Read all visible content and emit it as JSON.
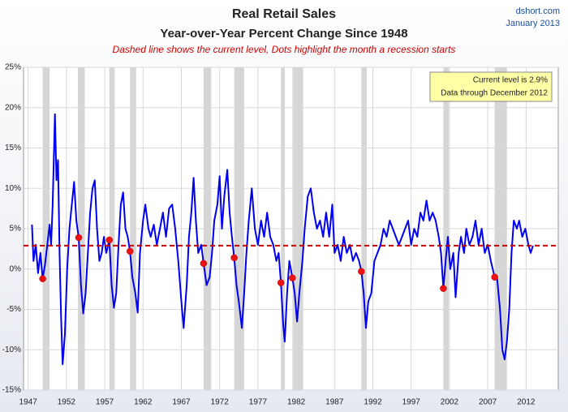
{
  "chart_data": {
    "type": "line",
    "title": "Real Retail Sales",
    "subtitle": "Year-over-Year Percent Change Since 1948",
    "note": "Dashed line shows the current level, Dots highlight the month a recession starts",
    "source": "dshort.com",
    "date": "January 2013",
    "annotation": [
      "Current level is 2.9%",
      "Data through December 2012"
    ],
    "current_level": 2.9,
    "reference_color": "#cc0000",
    "recessions": [
      [
        1948.9,
        1949.8
      ],
      [
        1953.5,
        1954.4
      ],
      [
        1957.6,
        1958.3
      ],
      [
        1960.3,
        1961.1
      ],
      [
        1969.9,
        1970.9
      ],
      [
        1973.9,
        1975.2
      ],
      [
        1980.0,
        1980.5
      ],
      [
        1981.5,
        1982.9
      ],
      [
        1990.5,
        1991.2
      ],
      [
        2001.2,
        2001.9
      ],
      [
        2007.9,
        2009.5
      ]
    ],
    "recession_color": "#d6d6d6",
    "series": [
      {
        "color": "#0000ee",
        "x": [
          1947.5,
          1947.7,
          1948.0,
          1948.3,
          1948.6,
          1948.9,
          1949.2,
          1949.5,
          1949.8,
          1950.0,
          1950.2,
          1950.5,
          1950.7,
          1950.9,
          1951.1,
          1951.3,
          1951.5,
          1951.8,
          1952.1,
          1952.4,
          1952.7,
          1953.0,
          1953.3,
          1953.6,
          1953.9,
          1954.2,
          1954.5,
          1954.8,
          1955.1,
          1955.4,
          1955.7,
          1956.0,
          1956.3,
          1956.6,
          1956.9,
          1957.2,
          1957.6,
          1957.9,
          1958.2,
          1958.5,
          1958.8,
          1959.1,
          1959.4,
          1959.7,
          1960.0,
          1960.3,
          1960.6,
          1961.0,
          1961.3,
          1961.6,
          1962.0,
          1962.3,
          1962.7,
          1963.0,
          1963.4,
          1963.8,
          1964.2,
          1964.6,
          1965.0,
          1965.4,
          1965.8,
          1966.2,
          1966.6,
          1967.0,
          1967.3,
          1967.7,
          1968.0,
          1968.3,
          1968.6,
          1968.9,
          1969.2,
          1969.6,
          1969.9,
          1970.3,
          1970.7,
          1971.0,
          1971.3,
          1971.7,
          1972.0,
          1972.3,
          1972.6,
          1973.0,
          1973.3,
          1973.6,
          1973.9,
          1974.2,
          1974.5,
          1974.9,
          1975.2,
          1975.5,
          1975.8,
          1976.2,
          1976.6,
          1977.0,
          1977.4,
          1977.8,
          1978.2,
          1978.6,
          1979.0,
          1979.4,
          1979.7,
          1980.0,
          1980.3,
          1980.5,
          1980.8,
          1981.1,
          1981.5,
          1981.8,
          1982.1,
          1982.4,
          1982.8,
          1983.1,
          1983.5,
          1983.9,
          1984.3,
          1984.7,
          1985.1,
          1985.5,
          1985.9,
          1986.3,
          1986.7,
          1987.0,
          1987.4,
          1987.8,
          1988.2,
          1988.6,
          1989.0,
          1989.4,
          1989.8,
          1990.2,
          1990.5,
          1990.8,
          1991.1,
          1991.4,
          1991.8,
          1992.2,
          1992.6,
          1993.0,
          1993.4,
          1993.8,
          1994.2,
          1994.6,
          1995.0,
          1995.4,
          1995.8,
          1996.2,
          1996.6,
          1997.0,
          1997.4,
          1997.8,
          1998.2,
          1998.6,
          1999.0,
          1999.4,
          1999.8,
          2000.2,
          2000.6,
          2000.9,
          2001.2,
          2001.5,
          2001.8,
          2002.1,
          2002.5,
          2002.8,
          2003.2,
          2003.5,
          2003.9,
          2004.2,
          2004.6,
          2005.0,
          2005.4,
          2005.8,
          2006.2,
          2006.6,
          2007.0,
          2007.4,
          2007.9,
          2008.2,
          2008.6,
          2008.9,
          2009.2,
          2009.5,
          2009.8,
          2010.1,
          2010.4,
          2010.8,
          2011.1,
          2011.5,
          2011.9,
          2012.3,
          2012.6,
          2012.9
        ],
        "values": [
          5.5,
          1,
          3,
          -0.5,
          2,
          -1.2,
          0.5,
          3,
          5.5,
          3,
          8,
          19.2,
          11,
          13.5,
          2,
          -6,
          -11.8,
          -8,
          0,
          5,
          8,
          10.8,
          6,
          3.9,
          -2,
          -5.5,
          -3,
          2,
          7,
          10,
          11,
          5,
          1,
          2,
          4,
          2,
          3.6,
          -2,
          -4.8,
          -3,
          3,
          8,
          9.5,
          5,
          4,
          2.2,
          -1,
          -3,
          -5.4,
          2,
          6,
          8,
          5,
          4,
          5.5,
          3,
          5,
          7,
          4,
          7.5,
          8,
          5,
          1,
          -4,
          -7.3,
          -2,
          4,
          7,
          11.3,
          6,
          2,
          3,
          0.7,
          -2,
          -1,
          2,
          6,
          8,
          11.5,
          5,
          9,
          12.3,
          7,
          4,
          1.4,
          -2,
          -4,
          -7.3,
          -3,
          2,
          6,
          10,
          5,
          3,
          6,
          4,
          7,
          4,
          3,
          1,
          2,
          -1.7,
          -7,
          -9,
          -3,
          1,
          -1.1,
          -3,
          -6.5,
          -3,
          1,
          5,
          9,
          10,
          7,
          5,
          6,
          4,
          7,
          4,
          8,
          2,
          3,
          1,
          4,
          2,
          3,
          1,
          2,
          1,
          -0.3,
          -3,
          -7.3,
          -4,
          -3,
          1,
          2,
          3,
          5,
          4,
          6,
          5,
          4,
          3,
          4,
          5,
          6,
          3,
          5,
          4,
          7,
          6,
          8.5,
          6,
          7,
          6,
          4,
          2,
          -2.4,
          1,
          4,
          0,
          2,
          -3.5,
          2,
          4,
          2,
          5,
          3,
          4,
          6,
          3,
          5,
          2,
          3,
          1,
          -1.0,
          -1,
          -5,
          -10,
          -11.2,
          -9,
          -5,
          2,
          6,
          5,
          6,
          4,
          5,
          3,
          2,
          2.9
        ]
      }
    ],
    "recession_starts": {
      "color": "#ee1111",
      "x": [
        1948.9,
        1953.6,
        1957.6,
        1960.3,
        1969.9,
        1973.9,
        1980.0,
        1981.5,
        1990.5,
        2001.2,
        2007.9
      ],
      "values": [
        -1.2,
        3.9,
        3.6,
        2.2,
        0.7,
        1.4,
        -1.7,
        -1.1,
        -0.3,
        -2.4,
        -1.0
      ]
    },
    "xlim": [
      1946.4,
      2016.2
    ],
    "ylim": [
      -15,
      25
    ],
    "xticks": [
      1947,
      1952,
      1957,
      1962,
      1967,
      1972,
      1977,
      1982,
      1987,
      1992,
      1997,
      2002,
      2007,
      2012
    ],
    "yticks": [
      {
        "value": -15,
        "label": "-15%"
      },
      {
        "value": -10,
        "label": "-10%"
      },
      {
        "value": -5,
        "label": "-5%"
      },
      {
        "value": 0,
        "label": "0%"
      },
      {
        "value": 5,
        "label": "5%"
      },
      {
        "value": 10,
        "label": "10%"
      },
      {
        "value": 15,
        "label": "15%"
      },
      {
        "value": 20,
        "label": "20%"
      },
      {
        "value": 25,
        "label": "25%"
      }
    ],
    "grid": true
  }
}
